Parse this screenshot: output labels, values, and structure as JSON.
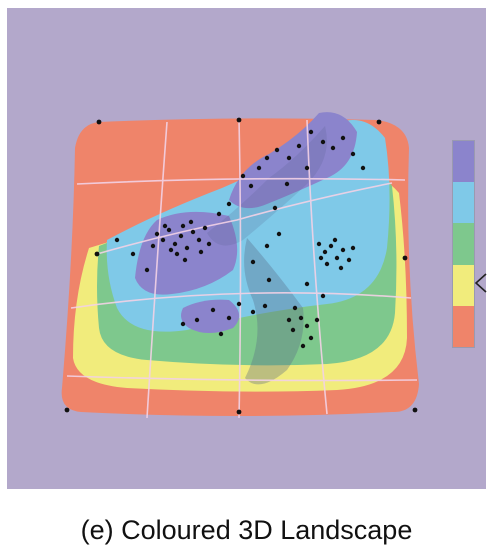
{
  "caption": "(e) Coloured 3D Landscape",
  "colors": {
    "background": "#b3a8cb",
    "band_purple": "#8b84cc",
    "band_blue": "#7fc9e8",
    "band_green": "#7ec88d",
    "band_yellow": "#f1ec7c",
    "band_red": "#ef846a",
    "grid_line": "#f3d2e6",
    "point": "#111111"
  },
  "colour_key": {
    "bands": [
      "purple",
      "blue",
      "green",
      "yellow",
      "red"
    ]
  },
  "icons": {
    "pointer": "chevron-left-icon"
  }
}
